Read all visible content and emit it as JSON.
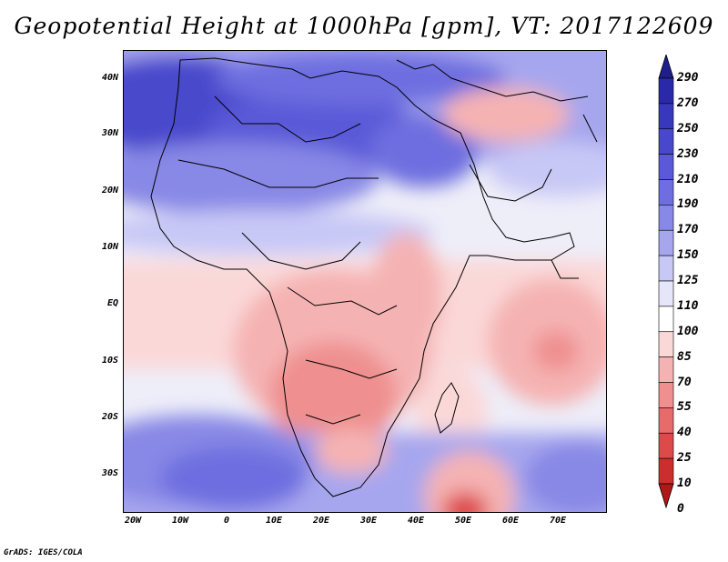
{
  "title": "Geopotential Height at 1000hPa [gpm], VT: 2017122609",
  "footer": "GrADS: IGES/COLA",
  "map": {
    "region": "Africa",
    "lon_labels": [
      "20W",
      "10W",
      "0",
      "10E",
      "20E",
      "30E",
      "40E",
      "50E",
      "60E",
      "70E"
    ],
    "lat_labels": [
      "40N",
      "30N",
      "20N",
      "10N",
      "EQ",
      "10S",
      "20S",
      "30S"
    ],
    "lon_range": [
      -22,
      80
    ],
    "lat_range": [
      -37,
      45
    ]
  },
  "colorbar": {
    "labels": [
      "290",
      "270",
      "250",
      "230",
      "210",
      "190",
      "170",
      "150",
      "125",
      "110",
      "100",
      "85",
      "70",
      "55",
      "40",
      "25",
      "10",
      "0"
    ],
    "colors": [
      "#1e1e8c",
      "#2a2aa8",
      "#3838bc",
      "#4848cc",
      "#5a5ad8",
      "#6e6ee0",
      "#8888e6",
      "#a6a6ee",
      "#c8c8f6",
      "#e6e6fb",
      "#ffffff",
      "#fbd8d8",
      "#f5b2b2",
      "#ef8f8f",
      "#e76b6b",
      "#dd4a4a",
      "#cc2e2e",
      "#b01818"
    ]
  }
}
